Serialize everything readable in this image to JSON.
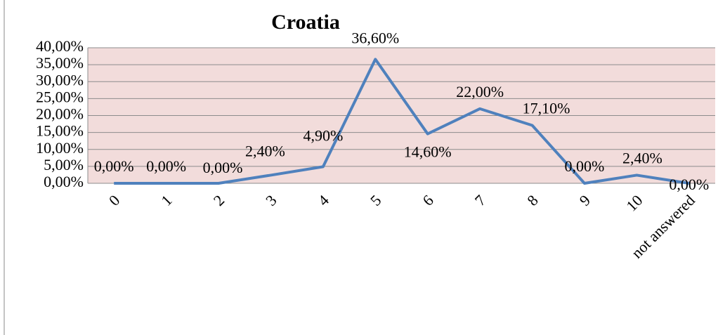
{
  "chart_data": {
    "type": "line",
    "title": "Croatia",
    "categories": [
      "0",
      "1",
      "2",
      "3",
      "4",
      "5",
      "6",
      "7",
      "8",
      "9",
      "10",
      "not answered"
    ],
    "values": [
      0,
      0,
      0,
      2.4,
      4.9,
      36.6,
      14.6,
      22,
      17.1,
      0,
      2.4,
      0
    ],
    "value_labels": [
      "0,00%",
      "0,00%",
      "0,00%",
      "2,40%",
      "4,90%",
      "36,60%",
      "14,60%",
      "22,00%",
      "17,10%",
      "0,00%",
      "2,40%",
      "0,00%"
    ],
    "color": "#4f81bd",
    "ylim": [
      0,
      40
    ],
    "yticks": [
      {
        "value": 0,
        "label": "0,00%"
      },
      {
        "value": 5,
        "label": "5,00%"
      },
      {
        "value": 10,
        "label": "10,00%"
      },
      {
        "value": 15,
        "label": "15,00%"
      },
      {
        "value": 20,
        "label": "20,00%"
      },
      {
        "value": 25,
        "label": "25,00%"
      },
      {
        "value": 30,
        "label": "30,00%"
      },
      {
        "value": 35,
        "label": "35,00%"
      },
      {
        "value": 40,
        "label": "40,00%"
      }
    ],
    "grid": true
  }
}
